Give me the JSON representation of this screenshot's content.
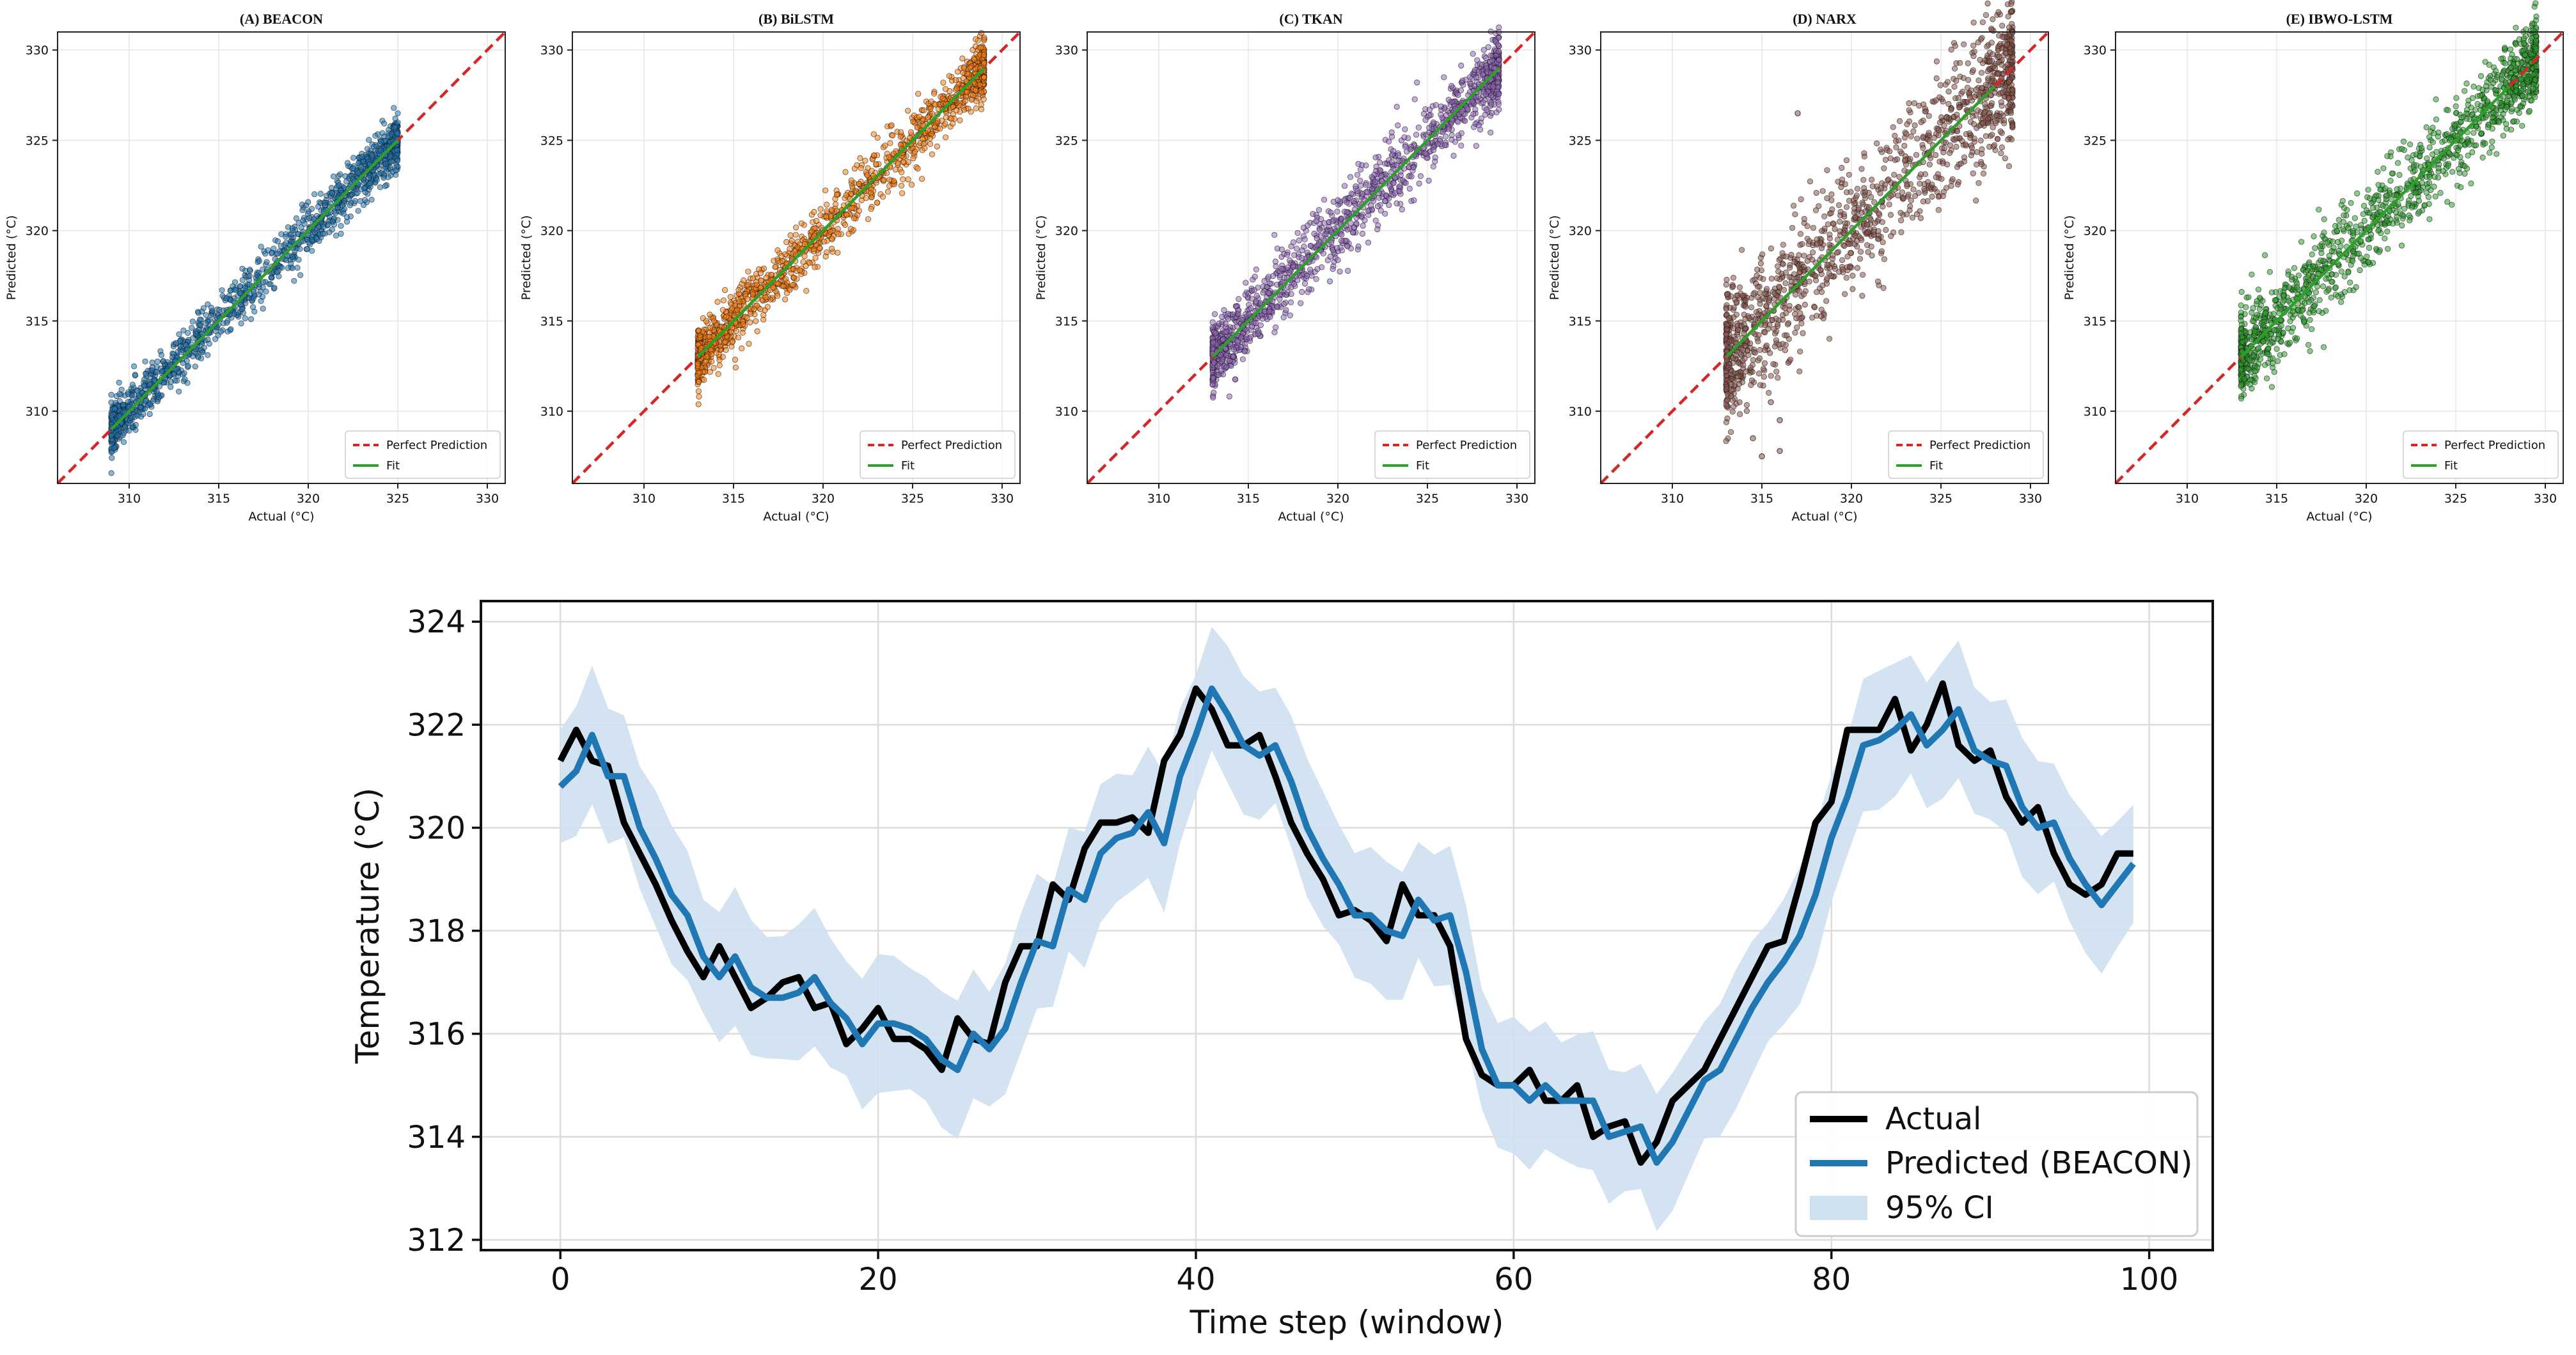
{
  "figure": {
    "scatter_panels": [
      {
        "title": "(A) BEACON",
        "xlabel": "Actual (°C)",
        "ylabel": "Predicted (°C)",
        "xticks": [
          310,
          315,
          320,
          325,
          330
        ],
        "yticks": [
          310,
          315,
          320,
          325,
          330
        ],
        "point_color": "#1f77b4",
        "actual_range": [
          309,
          325
        ],
        "prediction_spread": 0.7,
        "fit": [
          309,
          325
        ],
        "outliers": []
      },
      {
        "title": "(B) BiLSTM",
        "xlabel": "Actual (°C)",
        "ylabel": "Predicted (°C)",
        "xticks": [
          310,
          315,
          320,
          325,
          330
        ],
        "yticks": [
          310,
          315,
          320,
          325,
          330
        ],
        "point_color": "#ff7f0e",
        "actual_range": [
          313,
          329
        ],
        "prediction_spread": 0.8,
        "fit": [
          313,
          329
        ],
        "outliers": []
      },
      {
        "title": "(C) TKAN",
        "xlabel": "Actual (°C)",
        "ylabel": "Predicted (°C)",
        "xticks": [
          310,
          315,
          320,
          325,
          330
        ],
        "yticks": [
          310,
          315,
          320,
          325,
          330
        ],
        "point_color": "#9467bd",
        "actual_range": [
          313,
          329
        ],
        "prediction_spread": 1.0,
        "fit": [
          313,
          329
        ],
        "outliers": []
      },
      {
        "title": "(D) NARX",
        "xlabel": "Actual (°C)",
        "ylabel": "Predicted (°C)",
        "xticks": [
          310,
          315,
          320,
          325,
          330
        ],
        "yticks": [
          310,
          315,
          320,
          325,
          330
        ],
        "point_color": "#8c564b",
        "actual_range": [
          313,
          329
        ],
        "prediction_spread": 1.8,
        "fit": [
          313,
          328
        ],
        "outliers": [
          [
            315,
            307.5
          ],
          [
            314.5,
            308.5
          ],
          [
            316,
            307.8
          ],
          [
            317,
            326.5
          ],
          [
            316,
            309.5
          ],
          [
            315.5,
            310.5
          ]
        ]
      },
      {
        "title": "(E) IBWO-LSTM",
        "xlabel": "Actual (°C)",
        "ylabel": "Predicted (°C)",
        "xticks": [
          310,
          315,
          320,
          325,
          330
        ],
        "yticks": [
          310,
          315,
          320,
          325,
          330
        ],
        "point_color": "#2ca02c",
        "actual_range": [
          313,
          329.5
        ],
        "prediction_spread": 1.2,
        "fit": [
          313,
          328
        ],
        "outliers": []
      }
    ],
    "scatter_legend": {
      "perfect": "Perfect Prediction",
      "fit": "Fit"
    },
    "colors": {
      "perfect_line": "#d62728",
      "fit_line": "#2ca02c",
      "actual": "#000000",
      "predicted": "#1f77b4",
      "ci": "#cfe0ef"
    }
  },
  "chart_data": [
    {
      "type": "scatter",
      "panel": "(A) BEACON",
      "xlabel": "Actual (°C)",
      "ylabel": "Predicted (°C)",
      "xlim": [
        306,
        331
      ],
      "ylim": [
        306,
        331
      ],
      "series": [
        {
          "name": "Predictions",
          "summary": "points tightly along y=x from 309 to 325"
        },
        {
          "name": "Perfect Prediction"
        },
        {
          "name": "Fit"
        }
      ]
    },
    {
      "type": "scatter",
      "panel": "(B) BiLSTM",
      "xlabel": "Actual (°C)",
      "ylabel": "Predicted (°C)",
      "xlim": [
        306,
        331
      ],
      "ylim": [
        306,
        331
      ],
      "series": [
        {
          "name": "Predictions",
          "summary": "points along y=x from 313 to 329"
        },
        {
          "name": "Perfect Prediction"
        },
        {
          "name": "Fit"
        }
      ]
    },
    {
      "type": "scatter",
      "panel": "(C) TKAN",
      "xlabel": "Actual (°C)",
      "ylabel": "Predicted (°C)",
      "xlim": [
        306,
        331
      ],
      "ylim": [
        306,
        331
      ],
      "series": [
        {
          "name": "Predictions",
          "summary": "points along y=x from 313 to 329, moderate spread"
        },
        {
          "name": "Perfect Prediction"
        },
        {
          "name": "Fit"
        }
      ]
    },
    {
      "type": "scatter",
      "panel": "(D) NARX",
      "xlabel": "Actual (°C)",
      "ylabel": "Predicted (°C)",
      "xlim": [
        306,
        331
      ],
      "ylim": [
        306,
        331
      ],
      "series": [
        {
          "name": "Predictions",
          "summary": "points along y=x from 313 to 329, wide spread"
        },
        {
          "name": "Perfect Prediction"
        },
        {
          "name": "Fit"
        }
      ]
    },
    {
      "type": "scatter",
      "panel": "(E) IBWO-LSTM",
      "xlabel": "Actual (°C)",
      "ylabel": "Predicted (°C)",
      "xlim": [
        306,
        331
      ],
      "ylim": [
        306,
        331
      ],
      "series": [
        {
          "name": "Predictions",
          "summary": "points along y=x from 313 to 330"
        },
        {
          "name": "Perfect Prediction"
        },
        {
          "name": "Fit"
        }
      ]
    },
    {
      "type": "line",
      "title": "",
      "xlabel": "Time step (window)",
      "ylabel": "Temperature (°C)",
      "xlim": [
        -5,
        104
      ],
      "ylim": [
        311.8,
        324.4
      ],
      "xticks": [
        0,
        20,
        40,
        60,
        80,
        100
      ],
      "yticks": [
        312,
        314,
        316,
        318,
        320,
        322,
        324
      ],
      "legend": "bottom-right",
      "series": [
        {
          "name": "Actual",
          "values": [
            321.3,
            321.9,
            321.3,
            321.2,
            320.1,
            319.5,
            318.9,
            318.2,
            317.6,
            317.1,
            317.7,
            317.1,
            316.5,
            316.7,
            317.0,
            317.1,
            316.5,
            316.6,
            315.8,
            316.1,
            316.5,
            315.9,
            315.9,
            315.7,
            315.3,
            316.3,
            315.9,
            315.8,
            317.0,
            317.7,
            317.7,
            318.9,
            318.6,
            319.6,
            320.1,
            320.1,
            320.2,
            319.9,
            321.3,
            321.8,
            322.7,
            322.3,
            321.6,
            321.6,
            321.8,
            321.0,
            320.1,
            319.5,
            319.0,
            318.3,
            318.4,
            318.2,
            317.8,
            318.9,
            318.3,
            318.3,
            317.7,
            315.9,
            315.2,
            315.0,
            315.0,
            315.3,
            314.7,
            314.7,
            315.0,
            314.0,
            314.2,
            314.3,
            313.5,
            313.9,
            314.7,
            315.0,
            315.3,
            315.9,
            316.5,
            317.1,
            317.7,
            317.8,
            318.9,
            320.1,
            320.5,
            321.9,
            321.9,
            321.9,
            322.5,
            321.5,
            322.0,
            322.8,
            321.6,
            321.3,
            321.5,
            320.6,
            320.1,
            320.4,
            319.5,
            318.9,
            318.7,
            318.9,
            319.5,
            319.5
          ]
        },
        {
          "name": "Predicted (BEACON)",
          "values": [
            320.8,
            321.1,
            321.8,
            321.0,
            321.0,
            320.0,
            319.4,
            318.7,
            318.3,
            317.5,
            317.1,
            317.5,
            316.9,
            316.7,
            316.7,
            316.8,
            317.1,
            316.6,
            316.3,
            315.8,
            316.2,
            316.2,
            316.1,
            315.9,
            315.5,
            315.3,
            316.0,
            315.7,
            316.1,
            317.0,
            317.8,
            317.7,
            318.8,
            318.6,
            319.5,
            319.8,
            319.9,
            320.3,
            319.7,
            321.0,
            321.8,
            322.7,
            322.2,
            321.6,
            321.4,
            321.6,
            320.9,
            320.0,
            319.4,
            318.9,
            318.3,
            318.3,
            318.0,
            317.9,
            318.6,
            318.2,
            318.3,
            317.2,
            315.7,
            315.0,
            315.0,
            314.7,
            315.0,
            314.7,
            314.7,
            314.7,
            314.0,
            314.1,
            314.2,
            313.5,
            313.9,
            314.5,
            315.1,
            315.3,
            315.9,
            316.5,
            317.0,
            317.4,
            317.9,
            318.7,
            319.8,
            320.6,
            321.6,
            321.7,
            321.9,
            322.2,
            321.6,
            321.9,
            322.3,
            321.5,
            321.3,
            321.2,
            320.4,
            320.0,
            320.1,
            319.4,
            318.9,
            318.5,
            318.9,
            319.3
          ]
        },
        {
          "name": "95% CI",
          "values": "Predicted (BEACON) ± 1.2"
        }
      ]
    }
  ],
  "line_legend": {
    "actual": "Actual",
    "predicted": "Predicted (BEACON)",
    "ci": "95% CI"
  }
}
